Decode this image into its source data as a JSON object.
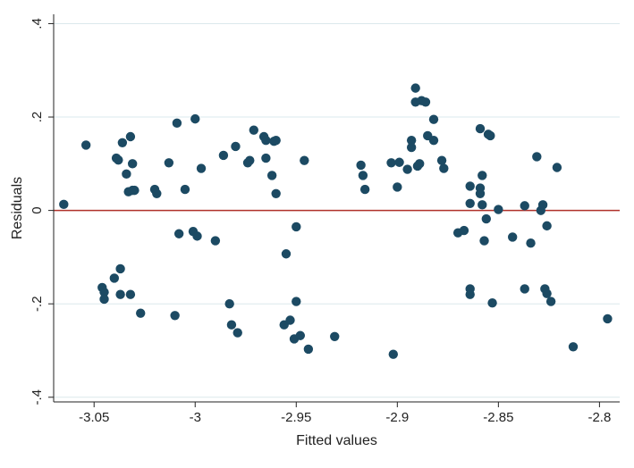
{
  "chart_data": {
    "type": "scatter",
    "xlabel": "Fitted values",
    "ylabel": "Residuals",
    "xlim": [
      -3.07,
      -2.79
    ],
    "ylim": [
      -0.41,
      0.42
    ],
    "x_ticks": [
      {
        "value": -3.05,
        "label": "-3.05"
      },
      {
        "value": -3.0,
        "label": "-3"
      },
      {
        "value": -2.95,
        "label": "-2.95"
      },
      {
        "value": -2.9,
        "label": "-2.9"
      },
      {
        "value": -2.85,
        "label": "-2.85"
      },
      {
        "value": -2.8,
        "label": "-2.8"
      }
    ],
    "y_ticks": [
      {
        "value": -0.4,
        "label": "-.4"
      },
      {
        "value": -0.2,
        "label": "-.2"
      },
      {
        "value": 0,
        "label": "0"
      },
      {
        "value": 0.2,
        "label": ".2"
      },
      {
        "value": 0.4,
        "label": ".4"
      }
    ],
    "reference_line_y": 0,
    "grid": true,
    "colors": {
      "points": "#1c4a63",
      "reference_line": "#b0302a",
      "grid": "#dbe8ec"
    },
    "points": [
      [
        -3.065,
        0.013
      ],
      [
        -3.054,
        0.14
      ],
      [
        -3.046,
        -0.165
      ],
      [
        -3.045,
        -0.175
      ],
      [
        -3.045,
        -0.19
      ],
      [
        -3.04,
        -0.145
      ],
      [
        -3.039,
        0.112
      ],
      [
        -3.038,
        0.108
      ],
      [
        -3.037,
        -0.125
      ],
      [
        -3.037,
        -0.18
      ],
      [
        -3.036,
        0.145
      ],
      [
        -3.034,
        0.078
      ],
      [
        -3.033,
        0.04
      ],
      [
        -3.032,
        0.158
      ],
      [
        -3.032,
        -0.18
      ],
      [
        -3.031,
        0.1
      ],
      [
        -3.031,
        0.043
      ],
      [
        -3.03,
        0.043
      ],
      [
        -3.027,
        -0.22
      ],
      [
        -3.02,
        0.045
      ],
      [
        -3.019,
        0.036
      ],
      [
        -3.013,
        0.102
      ],
      [
        -3.01,
        -0.225
      ],
      [
        -3.009,
        0.187
      ],
      [
        -3.008,
        -0.05
      ],
      [
        -3.005,
        0.045
      ],
      [
        -3.001,
        -0.045
      ],
      [
        -3.0,
        0.196
      ],
      [
        -2.999,
        -0.055
      ],
      [
        -2.997,
        0.09
      ],
      [
        -2.99,
        -0.065
      ],
      [
        -2.986,
        0.118
      ],
      [
        -2.983,
        -0.2
      ],
      [
        -2.982,
        -0.245
      ],
      [
        -2.98,
        0.137
      ],
      [
        -2.979,
        -0.262
      ],
      [
        -2.974,
        0.102
      ],
      [
        -2.973,
        0.107
      ],
      [
        -2.971,
        0.172
      ],
      [
        -2.966,
        0.158
      ],
      [
        -2.965,
        0.15
      ],
      [
        -2.965,
        0.112
      ],
      [
        -2.962,
        0.075
      ],
      [
        -2.961,
        0.148
      ],
      [
        -2.96,
        0.15
      ],
      [
        -2.96,
        0.036
      ],
      [
        -2.956,
        -0.245
      ],
      [
        -2.955,
        -0.093
      ],
      [
        -2.953,
        -0.235
      ],
      [
        -2.951,
        -0.275
      ],
      [
        -2.95,
        -0.195
      ],
      [
        -2.95,
        -0.035
      ],
      [
        -2.948,
        -0.268
      ],
      [
        -2.946,
        0.107
      ],
      [
        -2.944,
        -0.297
      ],
      [
        -2.931,
        -0.27
      ],
      [
        -2.918,
        0.097
      ],
      [
        -2.917,
        0.075
      ],
      [
        -2.916,
        0.045
      ],
      [
        -2.903,
        0.102
      ],
      [
        -2.902,
        -0.308
      ],
      [
        -2.9,
        0.05
      ],
      [
        -2.899,
        0.103
      ],
      [
        -2.895,
        0.088
      ],
      [
        -2.893,
        0.15
      ],
      [
        -2.893,
        0.135
      ],
      [
        -2.891,
        0.262
      ],
      [
        -2.891,
        0.232
      ],
      [
        -2.89,
        0.095
      ],
      [
        -2.889,
        0.1
      ],
      [
        -2.888,
        0.235
      ],
      [
        -2.886,
        0.232
      ],
      [
        -2.885,
        0.16
      ],
      [
        -2.882,
        0.195
      ],
      [
        -2.882,
        0.15
      ],
      [
        -2.878,
        0.107
      ],
      [
        -2.877,
        0.09
      ],
      [
        -2.87,
        -0.048
      ],
      [
        -2.867,
        -0.043
      ],
      [
        -2.864,
        0.015
      ],
      [
        -2.864,
        0.052
      ],
      [
        -2.864,
        -0.168
      ],
      [
        -2.864,
        -0.18
      ],
      [
        -2.859,
        0.175
      ],
      [
        -2.859,
        0.048
      ],
      [
        -2.859,
        0.036
      ],
      [
        -2.858,
        0.075
      ],
      [
        -2.858,
        0.012
      ],
      [
        -2.857,
        -0.065
      ],
      [
        -2.856,
        -0.018
      ],
      [
        -2.855,
        0.163
      ],
      [
        -2.854,
        0.16
      ],
      [
        -2.853,
        -0.198
      ],
      [
        -2.85,
        0.002
      ],
      [
        -2.843,
        -0.057
      ],
      [
        -2.837,
        0.01
      ],
      [
        -2.837,
        -0.168
      ],
      [
        -2.834,
        -0.07
      ],
      [
        -2.831,
        0.115
      ],
      [
        -2.829,
        0.0
      ],
      [
        -2.828,
        0.012
      ],
      [
        -2.827,
        -0.168
      ],
      [
        -2.826,
        -0.178
      ],
      [
        -2.826,
        -0.033
      ],
      [
        -2.824,
        -0.195
      ],
      [
        -2.821,
        0.092
      ],
      [
        -2.813,
        -0.292
      ],
      [
        -2.796,
        -0.232
      ]
    ]
  }
}
